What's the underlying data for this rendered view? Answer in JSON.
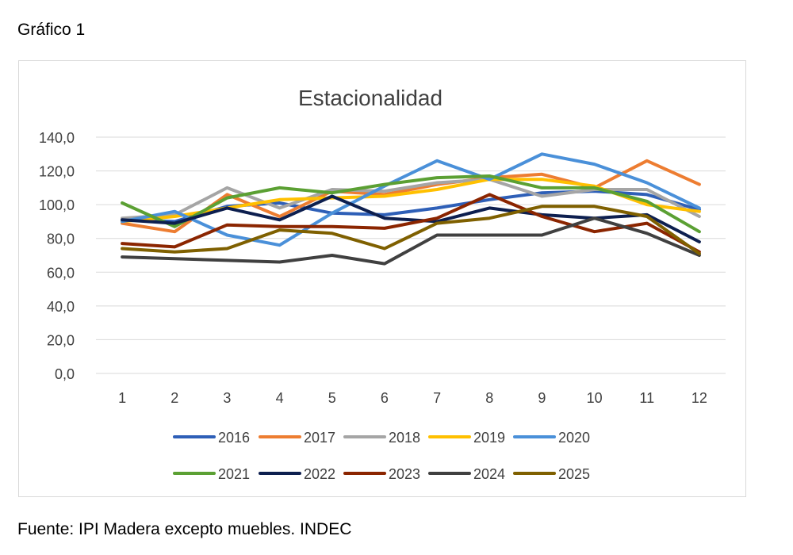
{
  "figure_label": "Gráfico 1",
  "source_note": "Fuente: IPI Madera excepto muebles. INDEC",
  "chart_data": {
    "type": "line",
    "title": "Estacionalidad",
    "xlabel": "",
    "ylabel": "",
    "x": [
      "1",
      "2",
      "3",
      "4",
      "5",
      "6",
      "7",
      "8",
      "9",
      "10",
      "11",
      "12"
    ],
    "y_ticks": [
      "0,0",
      "20,0",
      "40,0",
      "60,0",
      "80,0",
      "100,0",
      "120,0",
      "140,0"
    ],
    "ylim": [
      0,
      140
    ],
    "grid": true,
    "legend_position": "bottom",
    "series": [
      {
        "name": "2016",
        "color": "#2E5FB7",
        "values": [
          91,
          90,
          99,
          101,
          95,
          94,
          98,
          103,
          107,
          108,
          106,
          97
        ]
      },
      {
        "name": "2017",
        "color": "#ED7D31",
        "values": [
          89,
          84,
          106,
          93,
          108,
          106,
          112,
          116,
          118,
          110,
          126,
          112
        ]
      },
      {
        "name": "2018",
        "color": "#A5A5A5",
        "values": [
          92,
          94,
          110,
          98,
          109,
          108,
          113,
          115,
          105,
          109,
          109,
          93
        ]
      },
      {
        "name": "2019",
        "color": "#FFC000",
        "values": [
          90,
          93,
          98,
          103,
          104,
          105,
          109,
          115,
          115,
          111,
          100,
          96
        ]
      },
      {
        "name": "2020",
        "color": "#4A90D9",
        "values": [
          90,
          96,
          82,
          76,
          95,
          111,
          126,
          115,
          130,
          124,
          113,
          98
        ]
      },
      {
        "name": "2021",
        "color": "#5BA033",
        "values": [
          101,
          87,
          104,
          110,
          107,
          112,
          116,
          117,
          110,
          110,
          102,
          84
        ]
      },
      {
        "name": "2022",
        "color": "#0D1F4F",
        "values": [
          91,
          89,
          98,
          91,
          105,
          92,
          90,
          98,
          94,
          92,
          94,
          78
        ]
      },
      {
        "name": "2023",
        "color": "#8B2500",
        "values": [
          77,
          75,
          88,
          87,
          87,
          86,
          92,
          106,
          93,
          84,
          89,
          72
        ]
      },
      {
        "name": "2024",
        "color": "#404040",
        "values": [
          69,
          68,
          67,
          66,
          70,
          65,
          82,
          82,
          82,
          92,
          83,
          70
        ]
      },
      {
        "name": "2025",
        "color": "#7F6000",
        "values": [
          74,
          72,
          74,
          85,
          83,
          74,
          89,
          92,
          99,
          99,
          93,
          71
        ]
      }
    ]
  }
}
